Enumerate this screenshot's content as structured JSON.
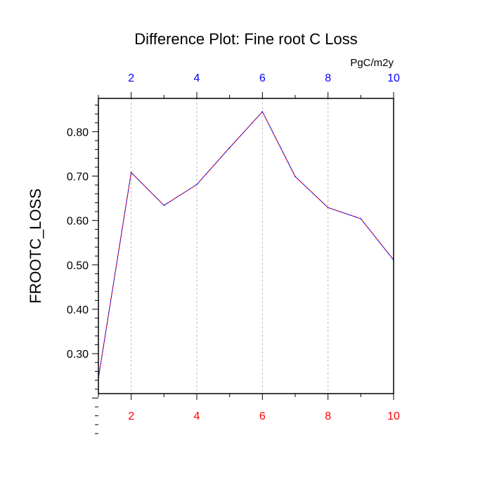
{
  "chart_data": {
    "type": "line",
    "title": "Difference Plot: Fine root C Loss",
    "ylabel": "FROOTC_LOSS",
    "units": "PgC/m2y",
    "xlim": [
      1,
      10
    ],
    "ylim": [
      0.21,
      0.875
    ],
    "x": [
      1,
      2,
      3,
      4,
      5,
      6,
      7,
      8,
      9,
      10
    ],
    "series": [
      {
        "values": [
          0.245,
          0.708,
          0.634,
          0.681,
          0.764,
          0.845,
          0.699,
          0.629,
          0.604,
          0.511
        ]
      }
    ],
    "x_ticks": [
      2,
      4,
      6,
      8,
      10
    ],
    "x_tick_labels": [
      "2",
      "4",
      "6",
      "8",
      "10"
    ],
    "y_ticks": [
      0.3,
      0.4,
      0.5,
      0.6,
      0.7,
      0.8
    ],
    "y_tick_labels": [
      "0.30",
      "0.40",
      "0.50",
      "0.60",
      "0.70",
      "0.80"
    ],
    "grid": "vertical dashed at major x ticks",
    "colors": {
      "bottom_axis_labels": "#ff0000",
      "top_axis_labels": "#0000ff",
      "line": "#0000ff",
      "line_dash": "#ff0000",
      "grid": "#bbbbbb",
      "frame": "#000000"
    }
  }
}
